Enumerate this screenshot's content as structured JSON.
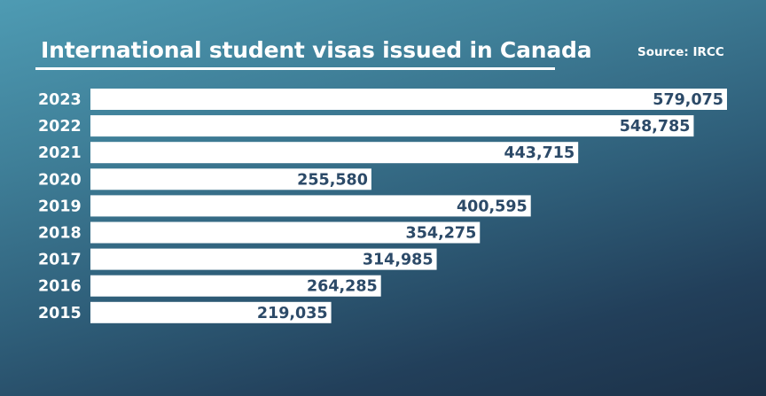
{
  "header": {
    "title": "International student visas issued in Canada",
    "source": "Source: IRCC"
  },
  "colors": {
    "bar": "#ffffff",
    "value_text": "#2c4a68",
    "title_text": "#ffffff"
  },
  "chart_data": {
    "type": "bar",
    "orientation": "horizontal",
    "title": "International student visas issued in Canada",
    "source": "Source: IRCC",
    "xlabel": "",
    "ylabel": "",
    "categories": [
      "2023",
      "2022",
      "2021",
      "2020",
      "2019",
      "2018",
      "2017",
      "2016",
      "2015"
    ],
    "values": [
      579075,
      548785,
      443715,
      255580,
      400595,
      354275,
      314985,
      264285,
      219035
    ],
    "value_labels": [
      "579,075",
      "548,785",
      "443,715",
      "255,580",
      "400,595",
      "354,275",
      "314,985",
      "264,285",
      "219,035"
    ],
    "grid": false,
    "legend": "none"
  }
}
